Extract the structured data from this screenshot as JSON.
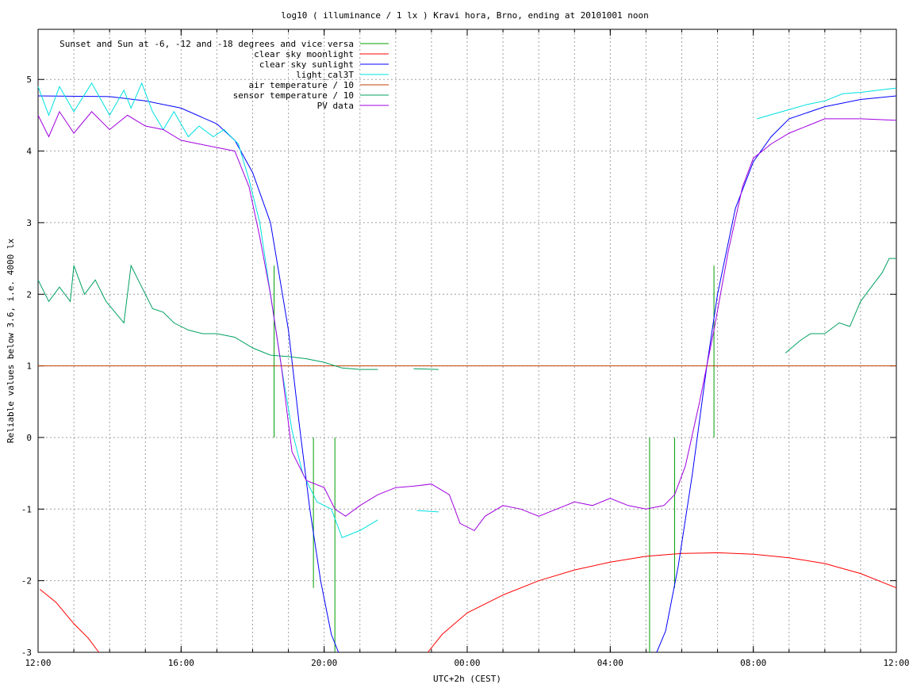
{
  "chart_data": {
    "type": "line",
    "title": "log10 ( illuminance / 1 lx ) Kravi hora, Brno, ending at 20101001 noon",
    "xlabel": "UTC+2h (CEST)",
    "ylabel": "Reliable values below 3.6, i.e. 4000 lx",
    "xlim": [
      0,
      24
    ],
    "ylim": [
      -3,
      5.7
    ],
    "x_tick_labels": [
      {
        "x": 0,
        "label": "12:00"
      },
      {
        "x": 4,
        "label": "16:00"
      },
      {
        "x": 8,
        "label": "20:00"
      },
      {
        "x": 12,
        "label": "00:00"
      },
      {
        "x": 16,
        "label": "04:00"
      },
      {
        "x": 20,
        "label": "08:00"
      },
      {
        "x": 24,
        "label": "12:00"
      }
    ],
    "x_minor_step": 1,
    "y_ticks": [
      -3,
      -2,
      -1,
      0,
      1,
      2,
      3,
      4,
      5
    ],
    "grid": true,
    "legend_position": "top-left",
    "series": [
      {
        "name": "Sunset and Sun at -6, -12 and -18 degrees and vice versa",
        "color": "#00a000",
        "style": "impulses",
        "impulses": [
          {
            "x": 6.6,
            "from": 0,
            "to": 2.4
          },
          {
            "x": 7.7,
            "from": 0,
            "to": -2.1
          },
          {
            "x": 8.3,
            "from": 0,
            "to": -3
          },
          {
            "x": 17.1,
            "from": 0,
            "to": -3
          },
          {
            "x": 17.8,
            "from": 0,
            "to": -2.1
          },
          {
            "x": 18.9,
            "from": 0,
            "to": 2.4
          }
        ]
      },
      {
        "name": "clear sky moonlight",
        "color": "#ff0000",
        "segments": [
          [
            [
              0.05,
              -2.12
            ],
            [
              0.5,
              -2.3
            ],
            [
              1.0,
              -2.6
            ],
            [
              1.4,
              -2.8
            ],
            [
              1.7,
              -3.0
            ]
          ],
          [
            [
              10.9,
              -3.0
            ],
            [
              11.3,
              -2.75
            ],
            [
              12.0,
              -2.45
            ],
            [
              13.0,
              -2.2
            ],
            [
              14.0,
              -2.0
            ],
            [
              15.0,
              -1.85
            ],
            [
              16.0,
              -1.74
            ],
            [
              17.0,
              -1.66
            ],
            [
              18.0,
              -1.62
            ],
            [
              19.0,
              -1.61
            ],
            [
              20.0,
              -1.63
            ],
            [
              21.0,
              -1.68
            ],
            [
              22.0,
              -1.76
            ],
            [
              23.0,
              -1.9
            ],
            [
              24.0,
              -2.1
            ]
          ]
        ]
      },
      {
        "name": "clear sky sunlight",
        "color": "#0000ff",
        "segments": [
          [
            [
              0,
              4.77
            ],
            [
              2,
              4.76
            ],
            [
              3,
              4.7
            ],
            [
              4,
              4.6
            ],
            [
              5,
              4.38
            ],
            [
              5.5,
              4.15
            ],
            [
              6.0,
              3.7
            ],
            [
              6.5,
              3.0
            ],
            [
              7.0,
              1.5
            ],
            [
              7.3,
              0.2
            ],
            [
              7.6,
              -1.0
            ],
            [
              7.9,
              -2.0
            ],
            [
              8.2,
              -2.75
            ],
            [
              8.4,
              -3.0
            ]
          ],
          [
            [
              17.3,
              -3.0
            ],
            [
              17.55,
              -2.7
            ],
            [
              17.9,
              -1.8
            ],
            [
              18.3,
              -0.5
            ],
            [
              18.7,
              1.0
            ],
            [
              19.0,
              2.0
            ],
            [
              19.5,
              3.2
            ],
            [
              20.0,
              3.85
            ],
            [
              20.5,
              4.2
            ],
            [
              21.0,
              4.45
            ],
            [
              22.0,
              4.62
            ],
            [
              23.0,
              4.72
            ],
            [
              24.0,
              4.77
            ]
          ]
        ]
      },
      {
        "name": "light_cal3T",
        "color": "#00e0e0",
        "segments": [
          [
            [
              0,
              4.9
            ],
            [
              0.3,
              4.5
            ],
            [
              0.6,
              4.9
            ],
            [
              1.0,
              4.55
            ],
            [
              1.5,
              4.95
            ],
            [
              2.0,
              4.5
            ],
            [
              2.4,
              4.85
            ],
            [
              2.6,
              4.6
            ],
            [
              2.9,
              4.95
            ],
            [
              3.2,
              4.55
            ],
            [
              3.5,
              4.3
            ],
            [
              3.8,
              4.55
            ],
            [
              4.2,
              4.2
            ],
            [
              4.5,
              4.35
            ],
            [
              4.9,
              4.2
            ],
            [
              5.2,
              4.3
            ],
            [
              5.6,
              4.1
            ],
            [
              5.9,
              3.6
            ],
            [
              6.2,
              3.0
            ],
            [
              6.5,
              2.0
            ],
            [
              6.8,
              1.0
            ],
            [
              7.1,
              0.1
            ],
            [
              7.4,
              -0.5
            ],
            [
              7.8,
              -0.9
            ],
            [
              8.2,
              -1.0
            ],
            [
              8.5,
              -1.4
            ],
            [
              9.0,
              -1.3
            ],
            [
              9.5,
              -1.15
            ]
          ],
          [
            [
              10.6,
              -1.02
            ],
            [
              11.2,
              -1.04
            ]
          ],
          [
            [
              20.1,
              4.45
            ],
            [
              20.8,
              4.55
            ],
            [
              21.5,
              4.65
            ],
            [
              22.0,
              4.7
            ],
            [
              22.5,
              4.8
            ],
            [
              23.0,
              4.82
            ],
            [
              23.5,
              4.85
            ],
            [
              24.0,
              4.88
            ]
          ]
        ]
      },
      {
        "name": "air temperature / 10",
        "color": "#c04000",
        "segments": [
          [
            [
              0,
              1.0
            ],
            [
              24,
              1.0
            ]
          ]
        ]
      },
      {
        "name": "sensor temperature / 10",
        "color": "#00a060",
        "segments": [
          [
            [
              0,
              2.2
            ],
            [
              0.3,
              1.9
            ],
            [
              0.6,
              2.1
            ],
            [
              0.9,
              1.9
            ],
            [
              1.0,
              2.4
            ],
            [
              1.3,
              2.0
            ],
            [
              1.6,
              2.2
            ],
            [
              1.9,
              1.9
            ],
            [
              2.4,
              1.6
            ],
            [
              2.6,
              2.4
            ],
            [
              2.9,
              2.1
            ],
            [
              3.2,
              1.8
            ],
            [
              3.5,
              1.75
            ],
            [
              3.8,
              1.6
            ],
            [
              4.2,
              1.5
            ],
            [
              4.6,
              1.45
            ],
            [
              5.0,
              1.45
            ],
            [
              5.5,
              1.4
            ],
            [
              6.0,
              1.25
            ],
            [
              6.5,
              1.15
            ],
            [
              7.0,
              1.13
            ],
            [
              7.5,
              1.1
            ],
            [
              8.0,
              1.05
            ],
            [
              8.5,
              0.97
            ],
            [
              9.0,
              0.95
            ],
            [
              9.5,
              0.95
            ]
          ],
          [
            [
              10.5,
              0.96
            ],
            [
              11.2,
              0.95
            ]
          ],
          [
            [
              20.9,
              1.18
            ],
            [
              21.3,
              1.35
            ],
            [
              21.6,
              1.45
            ],
            [
              22.0,
              1.45
            ],
            [
              22.4,
              1.6
            ],
            [
              22.7,
              1.55
            ],
            [
              23.0,
              1.9
            ],
            [
              23.3,
              2.1
            ],
            [
              23.6,
              2.3
            ],
            [
              23.8,
              2.5
            ],
            [
              24.0,
              2.5
            ]
          ]
        ]
      },
      {
        "name": "PV data",
        "color": "#a000e0",
        "segments": [
          [
            [
              0,
              4.5
            ],
            [
              0.3,
              4.2
            ],
            [
              0.6,
              4.55
            ],
            [
              1.0,
              4.25
            ],
            [
              1.5,
              4.55
            ],
            [
              2.0,
              4.3
            ],
            [
              2.5,
              4.5
            ],
            [
              3.0,
              4.35
            ],
            [
              3.5,
              4.3
            ],
            [
              4.0,
              4.15
            ],
            [
              4.5,
              4.1
            ],
            [
              5.0,
              4.05
            ],
            [
              5.5,
              4.0
            ],
            [
              5.9,
              3.5
            ],
            [
              6.2,
              2.8
            ],
            [
              6.5,
              2.0
            ],
            [
              6.8,
              1.0
            ],
            [
              7.1,
              -0.2
            ],
            [
              7.5,
              -0.6
            ],
            [
              8.0,
              -0.7
            ],
            [
              8.3,
              -1.0
            ],
            [
              8.6,
              -1.1
            ],
            [
              9.0,
              -0.95
            ],
            [
              9.5,
              -0.8
            ],
            [
              10.0,
              -0.7
            ],
            [
              10.5,
              -0.68
            ],
            [
              11.0,
              -0.65
            ],
            [
              11.5,
              -0.8
            ],
            [
              11.8,
              -1.2
            ],
            [
              12.2,
              -1.3
            ],
            [
              12.5,
              -1.1
            ],
            [
              13.0,
              -0.95
            ],
            [
              13.5,
              -1.0
            ],
            [
              14.0,
              -1.1
            ],
            [
              14.5,
              -1.0
            ],
            [
              15.0,
              -0.9
            ],
            [
              15.5,
              -0.95
            ],
            [
              16.0,
              -0.85
            ],
            [
              16.5,
              -0.95
            ],
            [
              17.0,
              -1.0
            ],
            [
              17.5,
              -0.95
            ],
            [
              17.8,
              -0.8
            ],
            [
              18.1,
              -0.4
            ],
            [
              18.5,
              0.5
            ],
            [
              18.9,
              1.5
            ],
            [
              19.3,
              2.6
            ],
            [
              19.7,
              3.5
            ],
            [
              20.0,
              3.9
            ],
            [
              20.5,
              4.1
            ],
            [
              21.0,
              4.25
            ],
            [
              21.5,
              4.35
            ],
            [
              22.0,
              4.45
            ],
            [
              22.5,
              4.45
            ],
            [
              23.0,
              4.45
            ],
            [
              24.0,
              4.43
            ]
          ]
        ]
      }
    ]
  }
}
